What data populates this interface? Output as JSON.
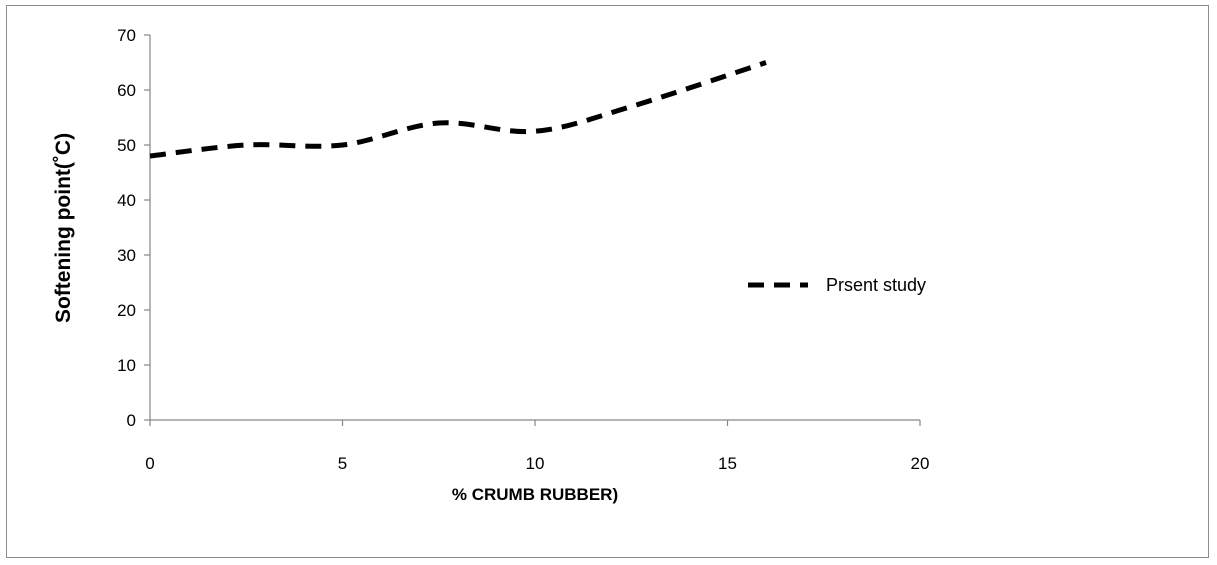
{
  "chart_data": {
    "type": "line",
    "title": "",
    "xlabel": "% CRUMB RUBBER)",
    "ylabel": "Softening point(˚C)",
    "xlim": [
      0,
      20
    ],
    "ylim": [
      0,
      70
    ],
    "x_ticks": [
      0,
      5,
      10,
      15,
      20
    ],
    "y_ticks": [
      0,
      10,
      20,
      30,
      40,
      50,
      60,
      70
    ],
    "grid": false,
    "legend": "right",
    "series": [
      {
        "name": "Prsent study",
        "style": "dashed",
        "color": "#000000",
        "x": [
          0,
          2.5,
          5,
          7.5,
          10,
          12.5,
          16
        ],
        "y": [
          48,
          50,
          50,
          54,
          52.5,
          57,
          65
        ]
      }
    ]
  }
}
